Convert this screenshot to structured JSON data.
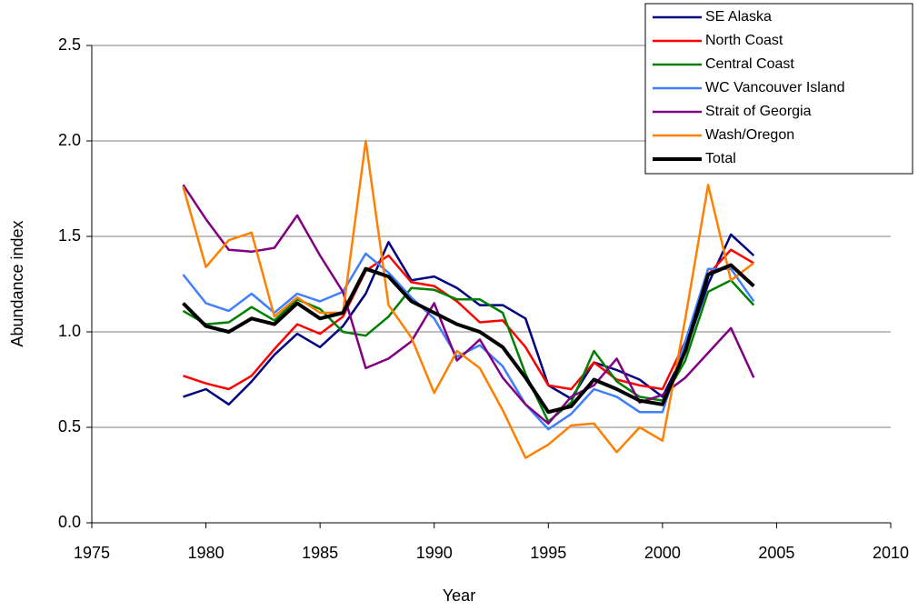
{
  "chart_data": {
    "type": "line",
    "x_label": "Year",
    "y_label": "Abundance index",
    "x": [
      1979,
      1980,
      1981,
      1982,
      1983,
      1984,
      1985,
      1986,
      1987,
      1988,
      1989,
      1990,
      1991,
      1992,
      1993,
      1994,
      1995,
      1996,
      1997,
      1998,
      1999,
      2000,
      2001,
      2002,
      2003,
      2004
    ],
    "series": [
      {
        "name": "SE Alaska",
        "color": "#000080",
        "values": [
          0.66,
          0.7,
          0.62,
          0.74,
          0.88,
          0.99,
          0.92,
          1.03,
          1.2,
          1.47,
          1.27,
          1.29,
          1.23,
          1.14,
          1.14,
          1.07,
          0.72,
          0.65,
          0.84,
          0.8,
          0.75,
          0.66,
          0.9,
          1.25,
          1.51,
          1.4
        ]
      },
      {
        "name": "North Coast",
        "color": "#ff0000",
        "values": [
          0.77,
          0.73,
          0.7,
          0.77,
          0.91,
          1.04,
          0.99,
          1.08,
          1.32,
          1.4,
          1.26,
          1.24,
          1.16,
          1.05,
          1.06,
          0.92,
          0.72,
          0.7,
          0.84,
          0.75,
          0.72,
          0.7,
          0.95,
          1.3,
          1.43,
          1.36
        ]
      },
      {
        "name": "Central Coast",
        "color": "#008000",
        "values": [
          1.11,
          1.04,
          1.05,
          1.13,
          1.06,
          1.17,
          1.12,
          1.0,
          0.98,
          1.08,
          1.23,
          1.22,
          1.17,
          1.17,
          1.1,
          0.78,
          0.53,
          0.63,
          0.9,
          0.74,
          0.66,
          0.64,
          0.85,
          1.21,
          1.27,
          1.14
        ]
      },
      {
        "name": "WC Vancouver Island",
        "color": "#3f7fff",
        "values": [
          1.3,
          1.15,
          1.11,
          1.2,
          1.1,
          1.2,
          1.16,
          1.21,
          1.41,
          1.31,
          1.18,
          1.07,
          0.87,
          0.93,
          0.82,
          0.62,
          0.49,
          0.57,
          0.7,
          0.66,
          0.58,
          0.58,
          0.95,
          1.33,
          1.33,
          1.16
        ]
      },
      {
        "name": "Strait of Georgia",
        "color": "#800080",
        "values": [
          1.77,
          1.59,
          1.43,
          1.42,
          1.44,
          1.61,
          1.4,
          1.21,
          0.81,
          0.86,
          0.95,
          1.15,
          0.85,
          0.96,
          0.76,
          0.62,
          0.52,
          0.66,
          0.72,
          0.86,
          0.63,
          0.67,
          0.76,
          0.89,
          1.02,
          0.76
        ]
      },
      {
        "name": "Wash/Oregon",
        "color": "#ff8000",
        "values": [
          1.76,
          1.34,
          1.48,
          1.52,
          1.08,
          1.18,
          1.1,
          1.1,
          2.0,
          1.14,
          0.97,
          0.68,
          0.9,
          0.81,
          0.59,
          0.34,
          0.41,
          0.51,
          0.52,
          0.37,
          0.5,
          0.43,
          1.07,
          1.77,
          1.27,
          1.36
        ]
      },
      {
        "name": "Total",
        "color": "#000000",
        "width": 4,
        "values": [
          1.15,
          1.03,
          1.0,
          1.07,
          1.04,
          1.15,
          1.07,
          1.1,
          1.33,
          1.29,
          1.16,
          1.1,
          1.04,
          1.0,
          0.92,
          0.76,
          0.58,
          0.61,
          0.75,
          0.7,
          0.64,
          0.62,
          0.9,
          1.3,
          1.35,
          1.24
        ]
      }
    ],
    "xlim": [
      1975,
      2010
    ],
    "xticks": [
      1975,
      1980,
      1985,
      1990,
      1995,
      2000,
      2005,
      2010
    ],
    "ylim": [
      0,
      2.5
    ],
    "yticks": [
      {
        "value": 0,
        "label": "0.0"
      },
      0.5,
      {
        "value": 1,
        "label": "1.0"
      },
      1.5,
      {
        "value": 2,
        "label": "2.0"
      },
      2.5
    ],
    "grid": true,
    "legend": "upper right"
  }
}
